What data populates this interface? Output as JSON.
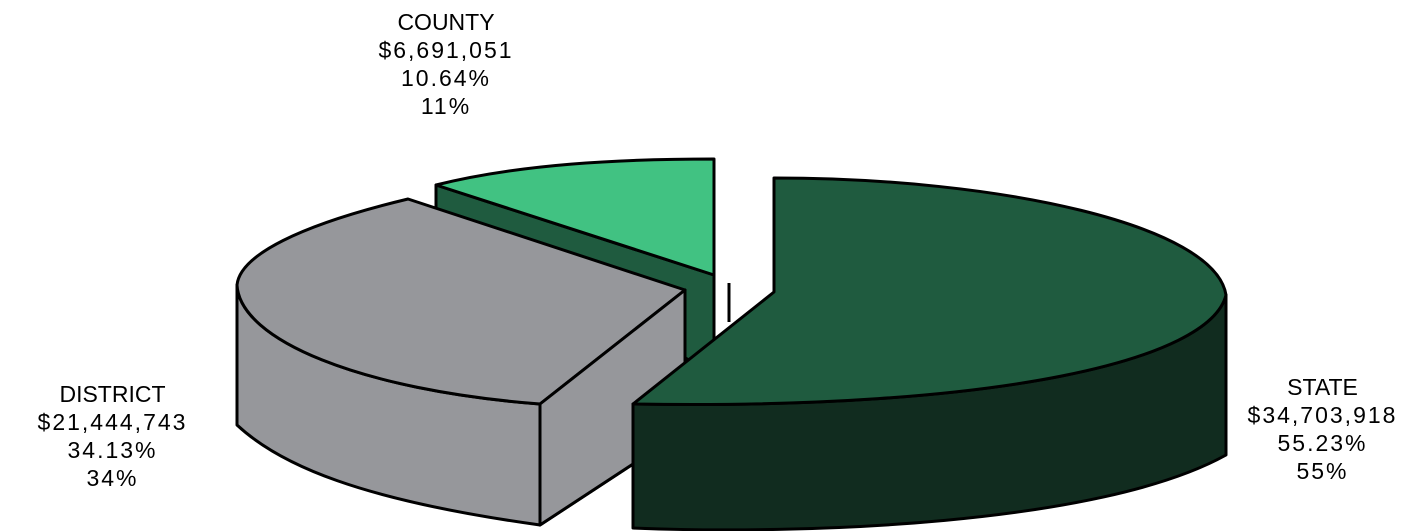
{
  "chart_data": {
    "type": "pie",
    "style": "3d-exploded",
    "slices": [
      {
        "name": "STATE",
        "amount": "$34,703,918",
        "value": 34703918,
        "percent": "55.23%",
        "rounded": "55%",
        "color": "#1f5b3f",
        "side_color": "#112c1f"
      },
      {
        "name": "DISTRICT",
        "amount": "$21,444,743",
        "value": 21444743,
        "percent": "34.13%",
        "rounded": "34%",
        "color": "#96979b",
        "side_color": "#96979b"
      },
      {
        "name": "COUNTY",
        "amount": "$6,691,051",
        "value": 6691051,
        "percent": "10.64%",
        "rounded": "11%",
        "color": "#41c282",
        "side_color": "#1f5b3f"
      }
    ]
  }
}
